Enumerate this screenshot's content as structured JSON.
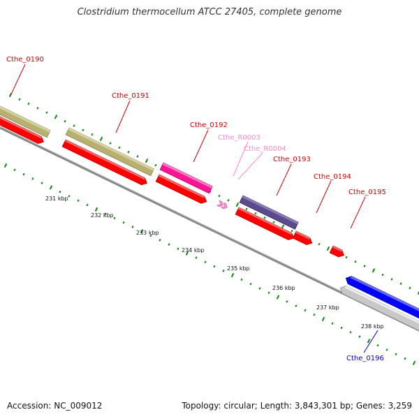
{
  "title": "Clostridium thermocellum ATCC 27405, complete genome",
  "footer": {
    "accession": "Accession: NC_009012",
    "summary": "Topology: circular; Length: 3,843,301 bp; Genes: 3,259"
  },
  "colors": {
    "cds": "#ff0000",
    "gene_bar": "#b8b070",
    "rna_gene": "#ff1493",
    "rrna": "#5b4a8c",
    "reverse_gene": "#0000ff",
    "reverse_bar": "#c8c8c8",
    "tick": "#0a8a0a",
    "axis": "#888888",
    "label_forward": "#cc0000",
    "label_rna": "#ff88c8",
    "label_reverse": "#0000cc"
  },
  "genes": [
    {
      "id": "Cthe_0190",
      "color": "label_forward"
    },
    {
      "id": "Cthe_0191",
      "color": "label_forward"
    },
    {
      "id": "Cthe_0192",
      "color": "label_forward"
    },
    {
      "id": "Cthe_R0003",
      "color": "label_rna"
    },
    {
      "id": "Cthe_R0004",
      "color": "label_rna"
    },
    {
      "id": "Cthe_0193",
      "color": "label_forward"
    },
    {
      "id": "Cthe_0194",
      "color": "label_forward"
    },
    {
      "id": "Cthe_0195",
      "color": "label_forward"
    },
    {
      "id": "Cthe_0196",
      "color": "label_reverse"
    }
  ],
  "kbp_ticks": [
    "231 kbp",
    "232 kbp",
    "233 kbp",
    "234 kbp",
    "235 kbp",
    "236 kbp",
    "237 kbp",
    "238 kbp"
  ]
}
